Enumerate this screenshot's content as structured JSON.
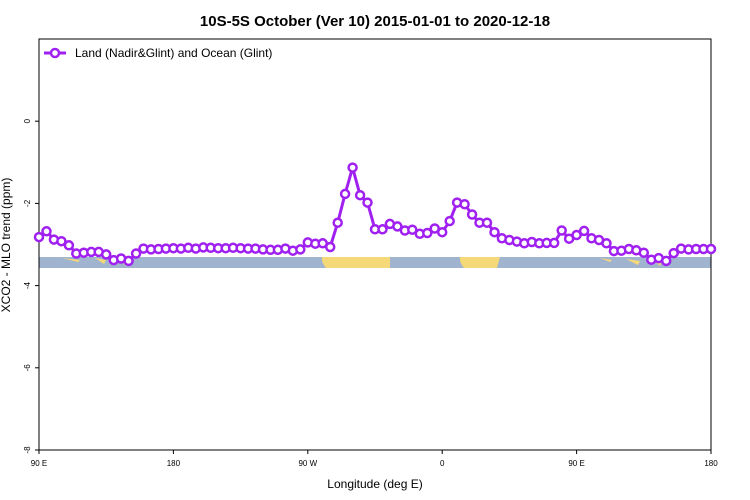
{
  "chart_data": {
    "type": "line",
    "title": "10S-5S October (Ver 10)   2015-01-01 to 2020-12-18",
    "xlabel": "Longitude (deg E)",
    "ylabel": "XCO2 - MLO trend (ppm)",
    "xlim": [
      90,
      450
    ],
    "ylim": [
      -8,
      2
    ],
    "x_ticks": [
      90,
      162,
      234,
      306,
      378,
      450
    ],
    "x_tick_labels": [
      "90 E",
      "180",
      "90 W",
      "0",
      "90 E",
      "180"
    ],
    "y_ticks": [
      -8,
      -6,
      -4,
      -2,
      0
    ],
    "y_tick_labels": [
      "-8",
      "-6",
      "-4",
      "-2",
      "0"
    ],
    "grid": false,
    "legend": {
      "position": "top-left",
      "entries": [
        "Land (Nadir&Glint) and Ocean (Glint)"
      ]
    },
    "colors": {
      "series": "#a020f0",
      "ocean_band": "#a0b4d0",
      "land_band": "#f5d878"
    },
    "series": [
      {
        "name": "Land (Nadir&Glint) and Ocean (Glint)",
        "x": [
          90,
          94,
          98,
          102,
          106,
          110,
          114,
          118,
          122,
          126,
          130,
          134,
          138,
          142,
          146,
          150,
          154,
          158,
          162,
          166,
          170,
          174,
          178,
          182,
          186,
          190,
          194,
          198,
          202,
          206,
          210,
          214,
          218,
          222,
          226,
          230,
          234,
          238,
          242,
          246,
          250,
          254,
          258,
          262,
          266,
          270,
          274,
          278,
          282,
          286,
          290,
          294,
          298,
          302,
          306,
          310,
          314,
          318,
          322,
          326,
          330,
          334,
          338,
          342,
          346,
          350,
          354,
          358,
          362,
          366,
          370,
          374,
          378,
          382,
          386,
          390,
          394,
          398,
          402,
          406,
          410,
          414,
          418,
          422,
          426,
          430,
          434,
          438,
          442,
          446,
          450
        ],
        "y": [
          -2.82,
          -2.68,
          -2.88,
          -2.92,
          -3.02,
          -3.22,
          -3.2,
          -3.18,
          -3.18,
          -3.24,
          -3.38,
          -3.34,
          -3.4,
          -3.22,
          -3.1,
          -3.12,
          -3.11,
          -3.1,
          -3.09,
          -3.1,
          -3.08,
          -3.1,
          -3.07,
          -3.08,
          -3.09,
          -3.09,
          -3.08,
          -3.09,
          -3.1,
          -3.1,
          -3.12,
          -3.13,
          -3.13,
          -3.1,
          -3.15,
          -3.12,
          -2.95,
          -2.98,
          -2.97,
          -3.06,
          -2.47,
          -1.77,
          -1.13,
          -1.8,
          -1.98,
          -2.63,
          -2.63,
          -2.5,
          -2.56,
          -2.66,
          -2.64,
          -2.74,
          -2.72,
          -2.61,
          -2.7,
          -2.43,
          -1.98,
          -2.02,
          -2.27,
          -2.47,
          -2.47,
          -2.7,
          -2.85,
          -2.89,
          -2.93,
          -2.97,
          -2.94,
          -2.97,
          -2.96,
          -2.96,
          -2.66,
          -2.86,
          -2.77,
          -2.67,
          -2.85,
          -2.89,
          -2.97,
          -3.16,
          -3.15,
          -3.11,
          -3.14,
          -3.2,
          -3.37,
          -3.33,
          -3.4,
          -3.21,
          -3.1,
          -3.12,
          -3.11,
          -3.11,
          -3.11
        ]
      }
    ]
  }
}
